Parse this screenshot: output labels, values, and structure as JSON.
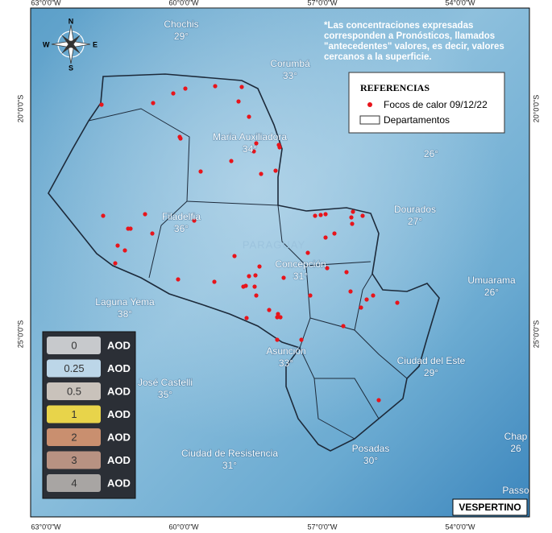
{
  "grid_labels": {
    "top": [
      "63°0'0\"W",
      "60°0'0\"W",
      "57°0'0\"W",
      "54°0'0\"W"
    ],
    "bottom": [
      "63°0'0\"W",
      "60°0'0\"W",
      "57°0'0\"W",
      "54°0'0\"W"
    ],
    "left": [
      "20°0'0\"S",
      "25°0'0\"S"
    ],
    "right": [
      "20°0'0\"S",
      "25°0'0\"S"
    ]
  },
  "compass": {
    "n": "N",
    "s": "S",
    "e": "E",
    "w": "W"
  },
  "note": [
    "*Las concentraciones expresadas",
    "corresponden a Pronósticos, llamados",
    "\"antecedentes\" valores, es decir, valores",
    "cercanos a la superficie."
  ],
  "legend": {
    "title": "REFERENCIAS",
    "fires": "Focos de calor 09/12/22",
    "departments": "Departamentos"
  },
  "country": "PARAGUAY",
  "cities": [
    {
      "name": "Chochis",
      "temp": "29°"
    },
    {
      "name": "Corumbá",
      "temp": "33°"
    },
    {
      "name": "Maria Auxiliadora",
      "temp": "34°"
    },
    {
      "name": "",
      "temp": "26°"
    },
    {
      "name": "Dourados",
      "temp": "27°"
    },
    {
      "name": "Filadelfia",
      "temp": "36°"
    },
    {
      "name": "Concepción",
      "temp": "31°"
    },
    {
      "name": "Umuarama",
      "temp": "26°"
    },
    {
      "name": "Laguna Yema",
      "temp": "38°"
    },
    {
      "name": "Asunción",
      "temp": "33°"
    },
    {
      "name": "Ciudad del Este",
      "temp": "29°"
    },
    {
      "name": "José Castelli",
      "temp": "35°"
    },
    {
      "name": "Ciudad de Resistencia",
      "temp": "31°"
    },
    {
      "name": "Posadas",
      "temp": "30°"
    },
    {
      "name": "Chap",
      "temp": "26"
    },
    {
      "name": "Passo",
      "temp": ""
    }
  ],
  "aod_scale": [
    {
      "value": "0",
      "unit": "AOD"
    },
    {
      "value": "0.25",
      "unit": "AOD"
    },
    {
      "value": "0.5",
      "unit": "AOD"
    },
    {
      "value": "1",
      "unit": "AOD"
    },
    {
      "value": "2",
      "unit": "AOD"
    },
    {
      "value": "3",
      "unit": "AOD"
    },
    {
      "value": "4",
      "unit": "AOD"
    }
  ],
  "period": "VESPERTINO"
}
